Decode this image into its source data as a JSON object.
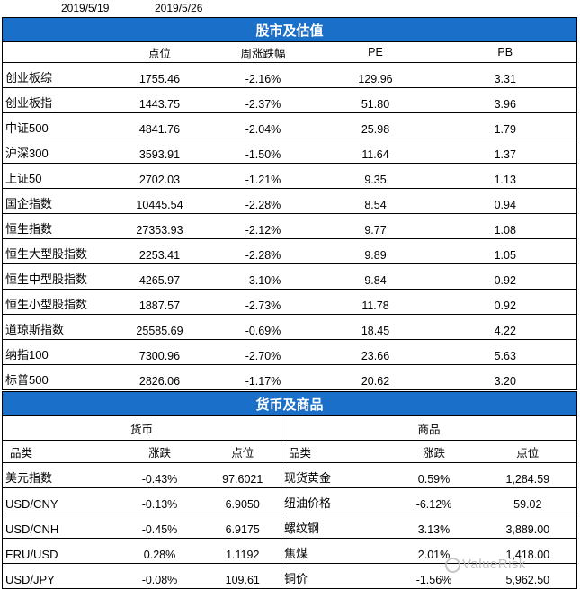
{
  "dates": [
    "2019/5/19",
    "2019/5/26"
  ],
  "stock": {
    "title": "股市及估值",
    "headers": [
      "点位",
      "周涨跌幅",
      "PE",
      "PB"
    ],
    "rows": [
      {
        "name": "创业板综",
        "level": "1755.46",
        "change": "-2.16%",
        "pe": "129.96",
        "pb": "3.31"
      },
      {
        "name": "创业板指",
        "level": "1443.75",
        "change": "-2.37%",
        "pe": "51.80",
        "pb": "3.96"
      },
      {
        "name": "中证500",
        "level": "4841.76",
        "change": "-2.04%",
        "pe": "25.98",
        "pb": "1.79"
      },
      {
        "name": "沪深300",
        "level": "3593.91",
        "change": "-1.50%",
        "pe": "11.64",
        "pb": "1.37"
      },
      {
        "name": "上证50",
        "level": "2702.03",
        "change": "-1.21%",
        "pe": "9.35",
        "pb": "1.13"
      },
      {
        "name": "国企指数",
        "level": "10445.54",
        "change": "-2.28%",
        "pe": "8.54",
        "pb": "0.94"
      },
      {
        "name": "恒生指数",
        "level": "27353.93",
        "change": "-2.12%",
        "pe": "9.77",
        "pb": "1.08"
      },
      {
        "name": "恒生大型股指数",
        "level": "2253.41",
        "change": "-2.28%",
        "pe": "9.89",
        "pb": "1.05"
      },
      {
        "name": "恒生中型股指数",
        "level": "4265.97",
        "change": "-3.10%",
        "pe": "9.84",
        "pb": "0.92"
      },
      {
        "name": "恒生小型股指数",
        "level": "1887.57",
        "change": "-2.73%",
        "pe": "11.78",
        "pb": "0.92"
      },
      {
        "name": "道琼斯指数",
        "level": "25585.69",
        "change": "-0.69%",
        "pe": "18.45",
        "pb": "4.22"
      },
      {
        "name": "纳指100",
        "level": "7300.96",
        "change": "-2.70%",
        "pe": "23.66",
        "pb": "5.63"
      },
      {
        "name": "标普500",
        "level": "2826.06",
        "change": "-1.17%",
        "pe": "20.62",
        "pb": "3.20"
      }
    ]
  },
  "fx": {
    "title": "货币及商品",
    "currency_section": "货币",
    "commodity_section": "商品",
    "currency_headers": [
      "品类",
      "涨跌",
      "点位"
    ],
    "commodity_headers": [
      "品类",
      "涨跌",
      "点位"
    ],
    "rows": [
      {
        "c_name": "美元指数",
        "c_change": "-0.43%",
        "c_level": "97.6021",
        "m_name": "现货黄金",
        "m_change": "0.59%",
        "m_level": "1,284.59"
      },
      {
        "c_name": "USD/CNY",
        "c_change": "-0.13%",
        "c_level": "6.9050",
        "m_name": "纽油价格",
        "m_change": "-6.12%",
        "m_level": "59.02"
      },
      {
        "c_name": "USD/CNH",
        "c_change": "-0.45%",
        "c_level": "6.9175",
        "m_name": "螺纹钢",
        "m_change": "3.13%",
        "m_level": "3,889.00"
      },
      {
        "c_name": "ERU/USD",
        "c_change": "0.28%",
        "c_level": "1.1192",
        "m_name": "焦煤",
        "m_change": "2.01%",
        "m_level": "1,418.00"
      },
      {
        "c_name": "USD/JPY",
        "c_change": "-0.08%",
        "c_level": "109.61",
        "m_name": "铜价",
        "m_change": "-1.56%",
        "m_level": "5,962.50"
      }
    ]
  },
  "watermark": "ValueRisk"
}
